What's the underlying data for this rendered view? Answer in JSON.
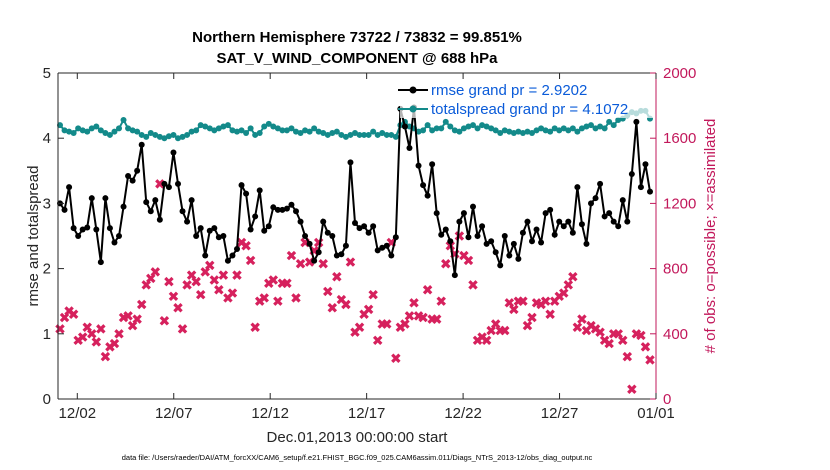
{
  "chart_data": {
    "type": "line",
    "title": "Northern Hemisphere 73722 / 73832 = 99.851%",
    "subtitle": "SAT_V_WIND_COMPONENT @ 688 hPa",
    "xlabel": "Dec.01,2013 00:00:00 start",
    "ylabel_left": "rmse and totalspread",
    "ylabel_right": "# of obs: o=possible; ×=assimilated",
    "x_ticks": [
      "12/02",
      "12/07",
      "12/12",
      "12/17",
      "12/22",
      "12/27",
      "01/01"
    ],
    "x_tick_days": [
      1,
      6,
      11,
      16,
      21,
      26,
      31
    ],
    "xlim": [
      0,
      31
    ],
    "ylim_left": [
      0,
      5
    ],
    "yticks_left": [
      "0",
      "1",
      "2",
      "3",
      "4",
      "5"
    ],
    "ylim_right": [
      0,
      2000
    ],
    "yticks_right": [
      "0",
      "400",
      "800",
      "1200",
      "1600",
      "2000"
    ],
    "footnote": "data file: /Users/raeder/DAI/ATM_forcXX/CAM6_setup/f.e21.FHIST_BGC.f09_025.CAM6assim.011/Diags_NTrS_2013-12/obs_diag_output.nc",
    "legend": [
      {
        "label": "rmse grand pr = 2.9202",
        "color": "#000000"
      },
      {
        "label": "totalspread grand pr = 4.1072",
        "color": "#138a8a"
      }
    ],
    "series": [
      {
        "name": "rmse",
        "axis": "left",
        "color": "#000000",
        "marker": "dot",
        "values": [
          3.0,
          2.9,
          3.25,
          2.62,
          2.5,
          2.6,
          2.63,
          3.08,
          2.6,
          2.1,
          3.08,
          2.62,
          2.4,
          2.5,
          2.95,
          3.42,
          3.35,
          3.5,
          3.9,
          3.02,
          2.88,
          3.05,
          2.75,
          3.3,
          3.25,
          3.78,
          3.3,
          2.88,
          2.72,
          3.05,
          2.5,
          2.62,
          2.2,
          2.58,
          2.62,
          2.48,
          2.5,
          2.12,
          2.2,
          2.3,
          3.28,
          3.15,
          2.6,
          2.8,
          3.2,
          2.58,
          2.65,
          2.94,
          2.9,
          2.9,
          2.92,
          2.98,
          2.88,
          2.72,
          2.5,
          2.38,
          2.12,
          2.25,
          2.72,
          2.55,
          2.5,
          2.2,
          2.22,
          2.35,
          3.63,
          2.7,
          2.62,
          2.65,
          2.55,
          2.65,
          2.28,
          2.32,
          2.35,
          2.2,
          2.48,
          4.45,
          4.18,
          3.85,
          4.47,
          3.58,
          3.28,
          3.12,
          3.6,
          2.85,
          2.52,
          2.6,
          2.42,
          1.9,
          2.72,
          2.85,
          2.48,
          2.95,
          2.5,
          2.65,
          2.38,
          2.42,
          2.25,
          2.05,
          2.5,
          2.2,
          2.38,
          2.15,
          2.55,
          2.72,
          2.42,
          2.6,
          2.4,
          2.85,
          2.9,
          2.52,
          2.72,
          2.65,
          2.72,
          2.55,
          3.25,
          2.68,
          2.38,
          3.0,
          3.08,
          3.3,
          2.8,
          2.85,
          2.72,
          2.65,
          3.05,
          2.72,
          3.45,
          4.25,
          3.25,
          3.6,
          3.18
        ]
      },
      {
        "name": "totalspread",
        "axis": "left",
        "color": "#138a8a",
        "marker": "dot",
        "values": [
          4.2,
          4.12,
          4.1,
          4.08,
          4.15,
          4.12,
          4.1,
          4.15,
          4.18,
          4.12,
          4.08,
          4.05,
          4.1,
          4.15,
          4.28,
          4.15,
          4.12,
          4.1,
          4.05,
          4.02,
          4.08,
          4.05,
          4.02,
          4.0,
          4.03,
          4.05,
          4.0,
          4.02,
          4.05,
          4.1,
          4.12,
          4.2,
          4.18,
          4.15,
          4.12,
          4.15,
          4.18,
          4.2,
          4.12,
          4.1,
          4.12,
          4.08,
          4.15,
          4.05,
          4.08,
          4.18,
          4.22,
          4.18,
          4.15,
          4.12,
          4.12,
          4.15,
          4.1,
          4.08,
          4.12,
          4.1,
          4.15,
          4.1,
          4.08,
          4.05,
          4.08,
          4.1,
          4.05,
          4.02,
          4.05,
          4.08,
          4.05,
          4.05,
          4.05,
          4.1,
          4.05,
          4.08,
          4.05,
          4.05,
          4.02,
          4.2,
          4.25,
          4.18,
          4.15,
          4.1,
          4.12,
          4.2,
          4.12,
          4.15,
          4.15,
          4.25,
          4.18,
          4.12,
          4.1,
          4.15,
          4.18,
          4.2,
          4.15,
          4.2,
          4.18,
          4.15,
          4.12,
          4.08,
          4.12,
          4.1,
          4.08,
          4.1,
          4.08,
          4.1,
          4.08,
          4.12,
          4.15,
          4.12,
          4.1,
          4.15,
          4.12,
          4.15,
          4.12,
          4.15,
          4.1,
          4.15,
          4.18,
          4.2,
          4.15,
          4.18,
          4.15,
          4.25,
          4.2,
          4.28,
          4.3,
          4.35,
          4.4,
          4.38,
          4.42,
          4.42,
          4.3
        ]
      },
      {
        "name": "nobs_assimilated",
        "axis": "right",
        "color": "#d6215d",
        "marker": "x",
        "values": [
          430,
          500,
          540,
          520,
          360,
          380,
          440,
          400,
          350,
          430,
          260,
          320,
          340,
          400,
          500,
          510,
          450,
          490,
          580,
          700,
          740,
          780,
          1320,
          480,
          720,
          630,
          560,
          430,
          700,
          760,
          720,
          640,
          780,
          820,
          730,
          670,
          760,
          620,
          650,
          760,
          960,
          940,
          850,
          440,
          600,
          620,
          710,
          730,
          600,
          710,
          710,
          880,
          620,
          830,
          960,
          840,
          910,
          960,
          830,
          660,
          560,
          750,
          610,
          580,
          840,
          410,
          440,
          520,
          550,
          640,
          360,
          460,
          460,
          960,
          250,
          440,
          460,
          510,
          590,
          510,
          500,
          670,
          490,
          490,
          600,
          830,
          940,
          890,
          1000,
          880,
          850,
          700,
          360,
          380,
          360,
          420,
          460,
          420,
          420,
          590,
          550,
          600,
          600,
          450,
          500,
          590,
          580,
          600,
          520,
          600,
          630,
          650,
          700,
          750,
          440,
          490,
          420,
          450,
          430,
          410,
          360,
          340,
          400,
          400,
          360,
          260,
          60,
          400,
          390,
          320,
          240
        ]
      }
    ]
  }
}
